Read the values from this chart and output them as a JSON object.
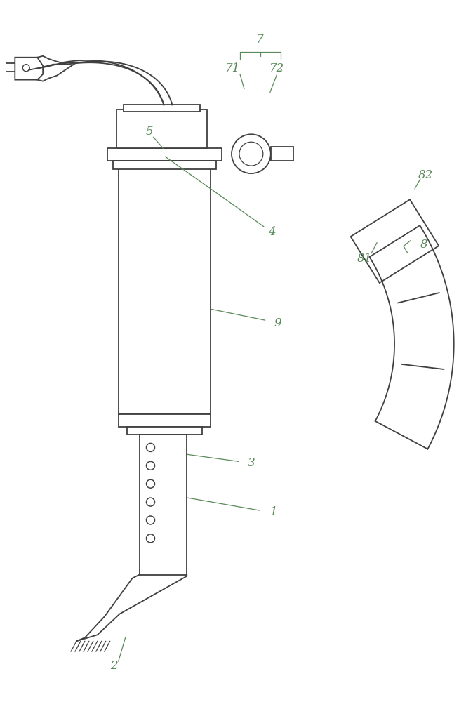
{
  "bg_color": "#ffffff",
  "line_color": "#404040",
  "label_color": "#5a8a5a",
  "figsize": [
    6.64,
    10.0
  ],
  "dpi": 100
}
